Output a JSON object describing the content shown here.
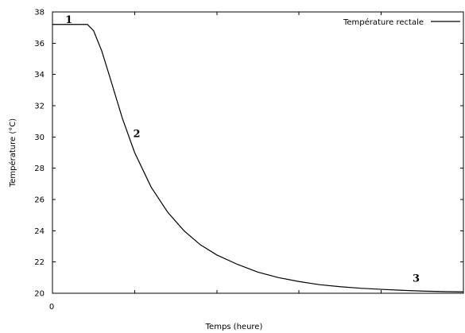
{
  "chart_data": {
    "type": "line",
    "title": "",
    "xlabel": "Temps (heure)",
    "ylabel": "Température (°C)",
    "xlim": [
      0,
      100
    ],
    "ylim": [
      20,
      38
    ],
    "x_tick_labels": [
      "0"
    ],
    "y_ticks": [
      20,
      22,
      24,
      26,
      28,
      30,
      32,
      34,
      36,
      38
    ],
    "grid": false,
    "legend_position": "top-right",
    "series": [
      {
        "name": "Température rectale",
        "color": "#000000",
        "x": [
          0,
          2,
          4,
          6,
          8,
          8.5,
          10,
          12,
          14,
          17,
          20,
          24,
          28,
          32,
          36,
          40,
          45,
          50,
          55,
          60,
          65,
          70,
          75,
          80,
          85,
          90,
          95,
          100
        ],
        "y": [
          37.2,
          37.2,
          37.2,
          37.2,
          37.2,
          37.2,
          36.8,
          35.5,
          33.8,
          31.2,
          29.0,
          26.8,
          25.2,
          24.0,
          23.1,
          22.45,
          21.85,
          21.35,
          21.0,
          20.75,
          20.55,
          20.42,
          20.32,
          20.25,
          20.19,
          20.14,
          20.11,
          20.09
        ]
      }
    ],
    "annotations": [
      {
        "text": "1",
        "x": 4.0,
        "y": 37.3
      },
      {
        "text": "2",
        "x": 20.5,
        "y": 30.0
      },
      {
        "text": "3",
        "x": 88.5,
        "y": 20.75
      }
    ]
  }
}
